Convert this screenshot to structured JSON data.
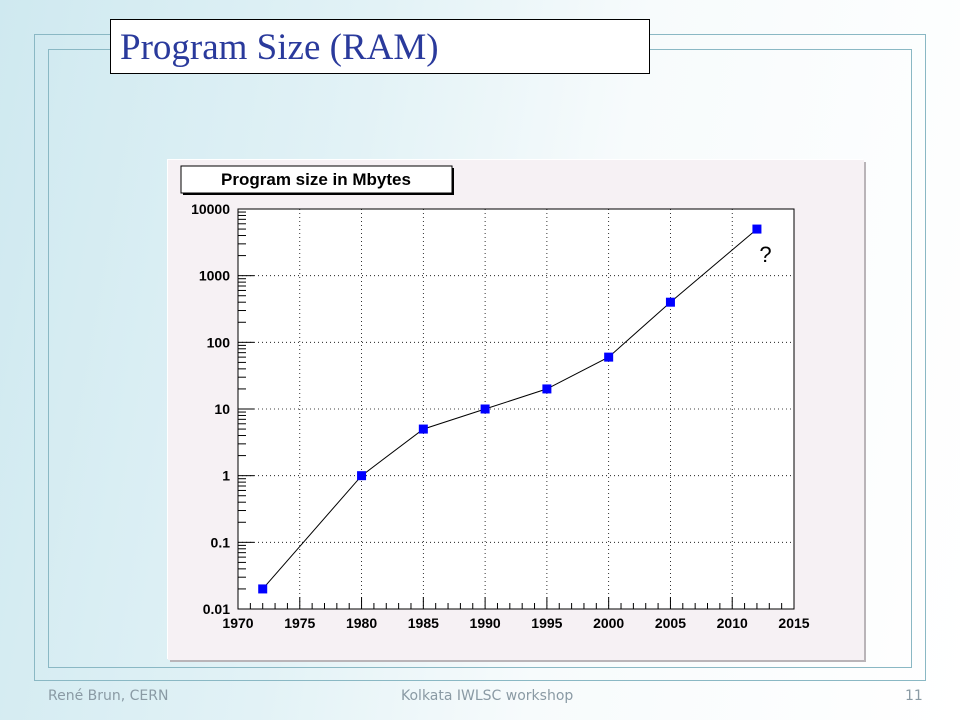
{
  "slide": {
    "title": "Program Size (RAM)",
    "page_number": "11"
  },
  "footer": {
    "author": "René Brun, CERN",
    "event": "Kolkata IWLSC workshop"
  },
  "colors": {
    "title": "#2a3a9c",
    "marker": "#0000ff",
    "frame": "#8ab8c4",
    "panel": "#f6f1f4"
  },
  "chart_data": {
    "type": "line",
    "title": "Program size in Mbytes",
    "xlabel": "",
    "ylabel": "",
    "log_y": true,
    "xlim": [
      1970,
      2015
    ],
    "ylim": [
      0.01,
      10000
    ],
    "x_ticks": [
      "1970",
      "1975",
      "1980",
      "1985",
      "1990",
      "1995",
      "2000",
      "2005",
      "2010",
      "2015"
    ],
    "y_ticks": [
      "0.01",
      "0.1",
      "1",
      "10",
      "100",
      "1000",
      "10000"
    ],
    "grid": true,
    "series": [
      {
        "x": [
          1972,
          1980,
          1985,
          1990,
          1995,
          2000,
          2005,
          2012
        ],
        "y": [
          0.02,
          1,
          5,
          10,
          20,
          60,
          400,
          5000
        ]
      }
    ],
    "annotations": [
      {
        "text": "?",
        "x": 2012.2,
        "y": 2200
      }
    ]
  }
}
